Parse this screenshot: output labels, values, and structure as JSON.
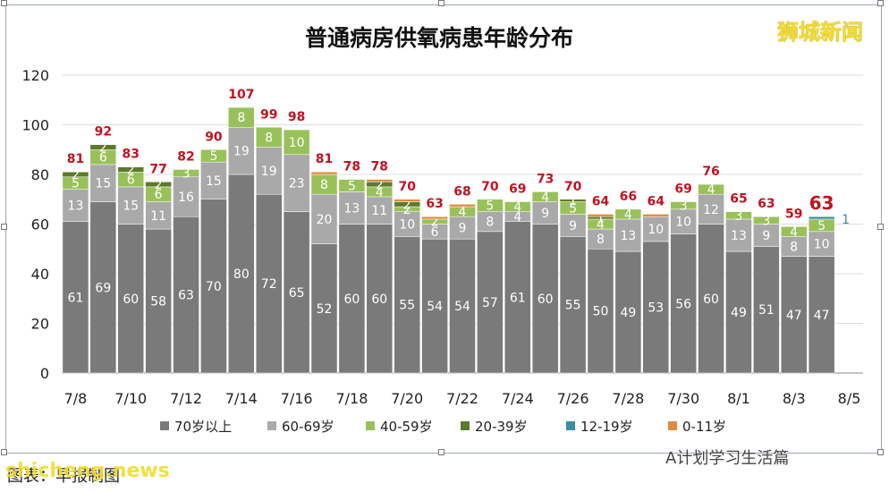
{
  "watermark": "狮城新闻",
  "source": "图表：早报制图",
  "brand": "shicheng.news",
  "wechat": "A计划学习生活篇",
  "colors": {
    "70plus": "#7a7a7a",
    "60_69": "#a9a9a9",
    "40_59": "#99c15a",
    "20_39": "#5d7a2c",
    "12_19": "#3a8fa0",
    "0_11": "#e08a3c",
    "total_label": "#c2121f"
  },
  "chart_data": {
    "type": "bar",
    "stacked": true,
    "title": "普通病房供氧病患年龄分布",
    "ylim": [
      0,
      120
    ],
    "yticks": [
      0,
      20,
      40,
      60,
      80,
      100,
      120
    ],
    "categories": [
      "7/8",
      "7/9",
      "7/10",
      "7/11",
      "7/12",
      "7/13",
      "7/14",
      "7/15",
      "7/16",
      "7/17",
      "7/18",
      "7/19",
      "7/20",
      "7/21",
      "7/22",
      "7/23",
      "7/24",
      "7/25",
      "7/26",
      "7/27",
      "7/28",
      "7/29",
      "7/30",
      "7/31",
      "8/1",
      "8/2",
      "8/3",
      "8/4",
      "8/5"
    ],
    "xtick_labels": [
      "7/8",
      "7/10",
      "7/12",
      "7/14",
      "7/16",
      "7/18",
      "7/20",
      "7/22",
      "7/24",
      "7/26",
      "7/28",
      "7/30",
      "8/1",
      "8/3",
      "8/5"
    ],
    "series": [
      {
        "name": "70岁以上",
        "values": [
          61,
          69,
          60,
          58,
          63,
          70,
          80,
          72,
          65,
          52,
          60,
          60,
          55,
          54,
          54,
          57,
          61,
          60,
          55,
          50,
          49,
          53,
          56,
          60,
          49,
          51,
          47,
          47,
          null
        ]
      },
      {
        "name": "60-69岁",
        "values": [
          13,
          15,
          15,
          11,
          16,
          15,
          19,
          19,
          23,
          20,
          13,
          11,
          10,
          6,
          9,
          8,
          4,
          9,
          9,
          8,
          13,
          10,
          10,
          12,
          13,
          9,
          8,
          10,
          null
        ]
      },
      {
        "name": "40-59岁",
        "values": [
          5,
          6,
          6,
          6,
          3,
          5,
          8,
          8,
          10,
          8,
          5,
          4,
          2,
          2,
          4,
          5,
          4,
          4,
          5,
          4,
          4,
          0,
          3,
          4,
          3,
          3,
          4,
          5,
          null
        ]
      },
      {
        "name": "20-39岁",
        "values": [
          2,
          2,
          2,
          2,
          0,
          0,
          0,
          0,
          0,
          0,
          0,
          2,
          2,
          0,
          0,
          0,
          0,
          0,
          1,
          1,
          0,
          0,
          0,
          0,
          0,
          0,
          0,
          0,
          null
        ]
      },
      {
        "name": "12-19岁",
        "values": [
          0,
          0,
          0,
          0,
          0,
          0,
          0,
          0,
          0,
          0,
          0,
          0,
          0,
          0,
          0,
          0,
          0,
          0,
          0,
          0,
          0,
          0,
          0,
          0,
          0,
          0,
          0,
          1,
          null
        ]
      },
      {
        "name": "0-11岁",
        "values": [
          0,
          0,
          0,
          0,
          0,
          0,
          0,
          0,
          0,
          1,
          0,
          1,
          1,
          1,
          1,
          0,
          0,
          0,
          0,
          1,
          0,
          1,
          0,
          0,
          0,
          0,
          0,
          0,
          null
        ]
      }
    ],
    "totals": [
      81,
      92,
      83,
      77,
      82,
      90,
      107,
      99,
      98,
      81,
      78,
      78,
      70,
      63,
      68,
      70,
      69,
      73,
      70,
      64,
      66,
      64,
      69,
      76,
      65,
      63,
      59,
      63,
      null
    ],
    "grid": true,
    "legend": "bottom"
  }
}
